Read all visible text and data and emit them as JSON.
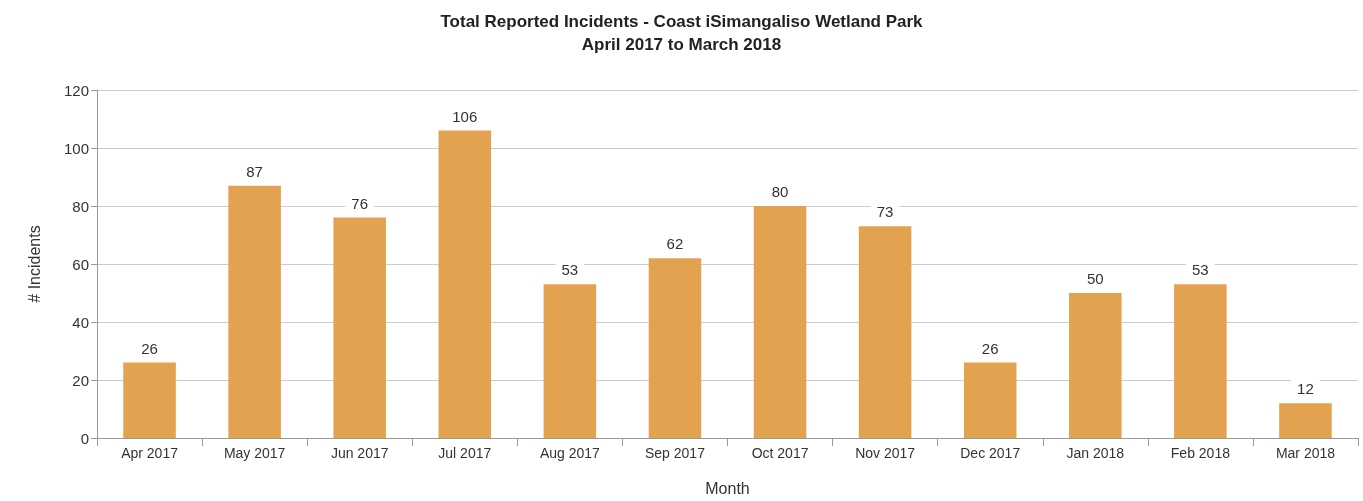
{
  "chart_data": {
    "type": "bar",
    "title": "Total Reported Incidents - Coast iSimangaliso Wetland Park",
    "subtitle": "April 2017 to March 2018",
    "xlabel": "Month",
    "ylabel": "# Incidents",
    "categories": [
      "Apr 2017",
      "May 2017",
      "Jun 2017",
      "Jul 2017",
      "Aug 2017",
      "Sep 2017",
      "Oct 2017",
      "Nov 2017",
      "Dec 2017",
      "Jan 2018",
      "Feb 2018",
      "Mar 2018"
    ],
    "values": [
      26,
      87,
      76,
      106,
      53,
      62,
      80,
      73,
      26,
      50,
      53,
      12
    ],
    "color": "#e3a24f",
    "ylim": [
      0,
      120
    ],
    "yticks": [
      0,
      20,
      40,
      60,
      80,
      100,
      120
    ],
    "grid": "y",
    "data_labels": true
  }
}
